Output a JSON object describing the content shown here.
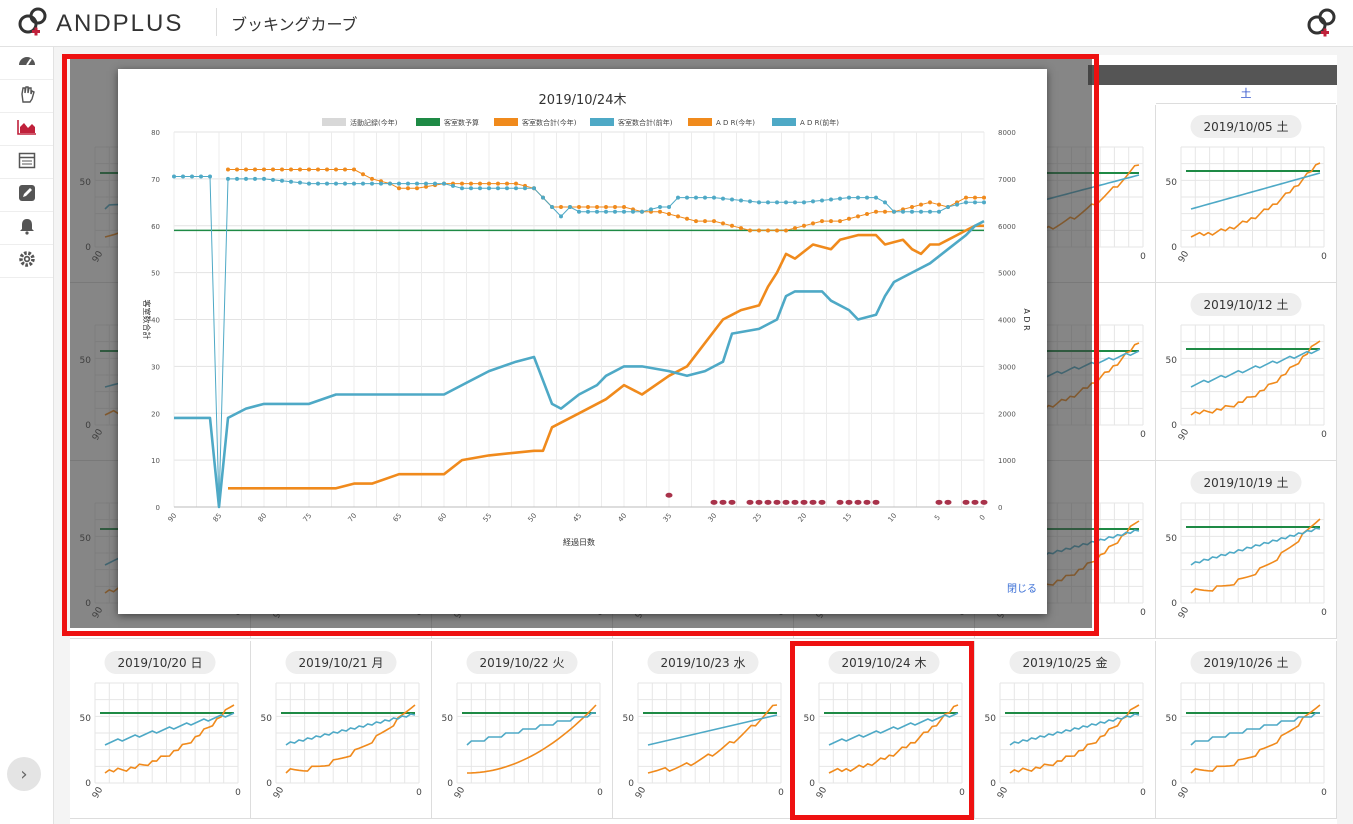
{
  "app": {
    "brand": "ANDPLUS",
    "page_title": "ブッキングカーブ"
  },
  "sidebar": {
    "items": [
      {
        "name": "dashboard-icon",
        "active": false
      },
      {
        "name": "hand-icon",
        "active": false
      },
      {
        "name": "area-chart-icon",
        "active": true
      },
      {
        "name": "calendar-icon",
        "active": false
      },
      {
        "name": "edit-icon",
        "active": false
      },
      {
        "name": "bell-icon",
        "active": false
      },
      {
        "name": "gear-icon",
        "active": false
      }
    ],
    "expand_label": "›"
  },
  "grid": {
    "weekday_header": "土",
    "right_column": [
      "2019/10/05 土",
      "2019/10/12 土",
      "2019/10/19 土"
    ],
    "bottom_row": [
      "2019/10/20 日",
      "2019/10/21 月",
      "2019/10/22 火",
      "2019/10/23 水",
      "2019/10/24 木",
      "2019/10/25 金",
      "2019/10/26 土"
    ],
    "mini_y_ticks": [
      "50",
      "0"
    ],
    "mini_x_ticks": [
      "90",
      "0"
    ]
  },
  "modal": {
    "title": "2019/10/24木",
    "close_label": "閉じる"
  },
  "colors": {
    "accent": "#c0213b",
    "budget": "#1e8a45",
    "this_year": "#f08a1c",
    "last_year": "#4ea9c6",
    "activity": "#d8d8d8",
    "marker": "#a8324a",
    "highlight": "#ee1111"
  },
  "chart_data": {
    "type": "line",
    "title": "2019/10/24木",
    "xlabel": "経過日数",
    "ylabel_left": "客室数合計",
    "ylabel_right": "A D R",
    "x_reversed": true,
    "xlim": [
      90,
      0
    ],
    "ylim_left": [
      0,
      80
    ],
    "ylim_right": [
      0,
      8000
    ],
    "x_ticks": [
      "90",
      "85",
      "80",
      "75",
      "70",
      "65",
      "60",
      "55",
      "50",
      "45",
      "40",
      "35",
      "30",
      "25",
      "20",
      "15",
      "10",
      "5",
      "0"
    ],
    "y_ticks_left": [
      "0",
      "10",
      "20",
      "30",
      "40",
      "50",
      "60",
      "70",
      "80"
    ],
    "y_ticks_right": [
      "0",
      "1000",
      "2000",
      "3000",
      "4000",
      "5000",
      "6000",
      "7000",
      "8000"
    ],
    "grid": true,
    "legend_position": "top",
    "series": [
      {
        "name": "活動記録(今年)",
        "axis": "left",
        "style": "markers",
        "x": [
          35,
          30,
          29,
          28,
          26,
          25,
          24,
          23,
          22,
          21,
          20,
          19,
          18,
          16,
          15,
          14,
          13,
          12,
          5,
          4,
          2,
          1,
          0
        ],
        "y": [
          2.5,
          1,
          1,
          1,
          1,
          1,
          1,
          1,
          1,
          1,
          1,
          1,
          1,
          1,
          1,
          1,
          1,
          1,
          1,
          1,
          1,
          1,
          1
        ]
      },
      {
        "name": "客室数予算",
        "axis": "left",
        "style": "line",
        "x": [
          90,
          0
        ],
        "y": [
          59,
          59
        ]
      },
      {
        "name": "客室数合計(今年)",
        "axis": "left",
        "style": "line",
        "x": [
          84,
          80,
          72,
          70,
          68,
          65,
          63,
          60,
          58,
          55,
          50,
          49,
          48,
          45,
          42,
          40,
          38,
          35,
          33,
          31,
          29,
          28,
          27,
          25,
          24,
          23,
          22,
          21,
          19,
          17,
          16,
          14,
          12,
          11,
          9,
          8,
          7,
          6,
          5,
          4,
          3,
          2,
          1,
          0
        ],
        "y": [
          4,
          4,
          4,
          5,
          5,
          7,
          7,
          7,
          10,
          11,
          12,
          12,
          17,
          20,
          23,
          26,
          24,
          28,
          30,
          35,
          40,
          41,
          42,
          43,
          47,
          50,
          54,
          53,
          56,
          55,
          57,
          58,
          58,
          56,
          57,
          55,
          54,
          56,
          56,
          57,
          58,
          59,
          60,
          60
        ]
      },
      {
        "name": "客室数合計(前年)",
        "axis": "left",
        "style": "line",
        "x": [
          90,
          87,
          86,
          85,
          84,
          82,
          80,
          75,
          72,
          70,
          68,
          65,
          63,
          60,
          58,
          55,
          52,
          50,
          48,
          47,
          45,
          43,
          42,
          40,
          38,
          35,
          33,
          31,
          30,
          29,
          28,
          25,
          23,
          22,
          21,
          20,
          19,
          18,
          17,
          15,
          14,
          12,
          11,
          10,
          8,
          6,
          4,
          2,
          1,
          0
        ],
        "y": [
          19,
          19,
          19,
          0,
          19,
          21,
          22,
          22,
          24,
          24,
          24,
          24,
          24,
          24,
          26,
          29,
          31,
          32,
          22,
          21,
          24,
          26,
          28,
          30,
          30,
          29,
          28,
          29,
          30,
          31,
          37,
          38,
          40,
          45,
          46,
          46,
          46,
          46,
          44,
          42,
          40,
          41,
          45,
          48,
          50,
          52,
          55,
          58,
          60,
          61
        ]
      },
      {
        "name": "A D R(今年)",
        "axis": "right",
        "style": "line-markers",
        "x": [
          84,
          70,
          68,
          66,
          65,
          63,
          60,
          58,
          55,
          52,
          50,
          48,
          45,
          42,
          40,
          38,
          36,
          34,
          32,
          30,
          28,
          26,
          24,
          22,
          20,
          18,
          16,
          14,
          12,
          10,
          8,
          6,
          4,
          2,
          1,
          0
        ],
        "y": [
          7200,
          7200,
          7000,
          6900,
          6800,
          6800,
          6900,
          6900,
          6900,
          6900,
          6800,
          6400,
          6400,
          6400,
          6400,
          6300,
          6300,
          6200,
          6100,
          6100,
          6000,
          5900,
          5900,
          5900,
          6000,
          6100,
          6100,
          6200,
          6300,
          6300,
          6400,
          6500,
          6400,
          6600,
          6600,
          6600
        ]
      },
      {
        "name": "A D R(前年)",
        "axis": "right",
        "style": "line-markers",
        "x": [
          90,
          87,
          86,
          85,
          84,
          80,
          75,
          72,
          70,
          68,
          65,
          60,
          58,
          55,
          52,
          50,
          48,
          47,
          46,
          45,
          42,
          40,
          38,
          36,
          35,
          34,
          33,
          30,
          25,
          20,
          15,
          12,
          11,
          10,
          8,
          6,
          5,
          4,
          2,
          1,
          0
        ],
        "y": [
          7050,
          7050,
          7050,
          0,
          7000,
          7000,
          6900,
          6900,
          6900,
          6900,
          6900,
          6900,
          6800,
          6800,
          6800,
          6800,
          6400,
          6200,
          6400,
          6300,
          6300,
          6300,
          6300,
          6400,
          6400,
          6600,
          6600,
          6600,
          6500,
          6500,
          6600,
          6600,
          6500,
          6300,
          6300,
          6300,
          6300,
          6400,
          6500,
          6500,
          6500
        ]
      }
    ]
  }
}
